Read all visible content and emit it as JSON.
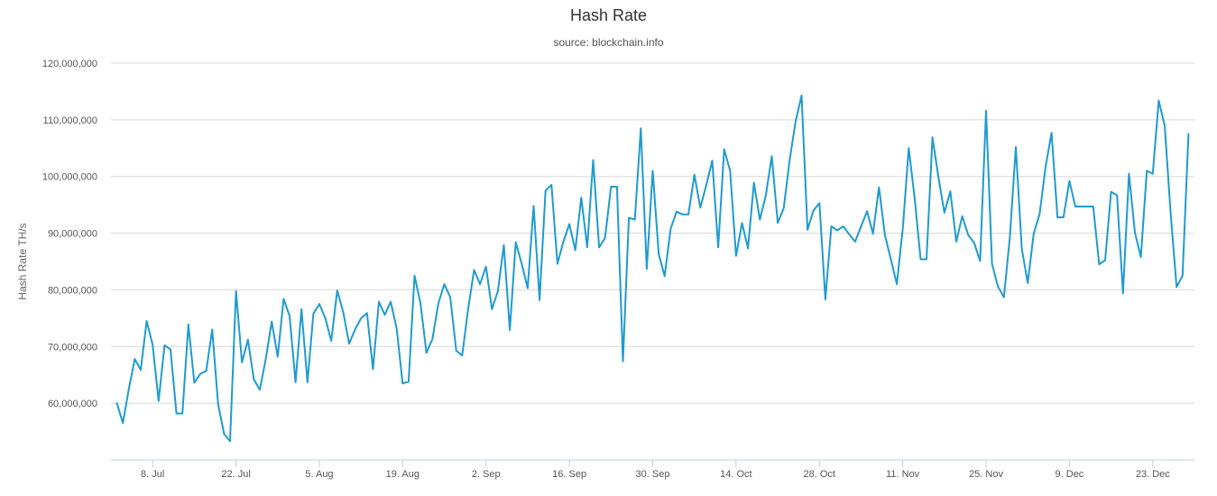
{
  "chart_data": {
    "type": "line",
    "title": "Hash Rate",
    "subtitle": "source: blockchain.info",
    "xlabel": "",
    "ylabel": "Hash Rate TH/s",
    "ylim": [
      50000000,
      120000000
    ],
    "yticks": [
      60000000,
      70000000,
      80000000,
      90000000,
      100000000,
      110000000,
      120000000
    ],
    "ytick_labels": [
      "60,000,000",
      "70,000,000",
      "80,000,000",
      "90,000,000",
      "100,000,000",
      "110,000,000",
      "120,000,000"
    ],
    "xlim": [
      -7,
      175
    ],
    "xticks": [
      0,
      14,
      28,
      42,
      56,
      70,
      84,
      98,
      112,
      126,
      140,
      154,
      168
    ],
    "xtick_labels": [
      "8. Jul",
      "22. Jul",
      "5. Aug",
      "19. Aug",
      "2. Sep",
      "16. Sep",
      "30. Sep",
      "14. Oct",
      "28. Oct",
      "11. Nov",
      "25. Nov",
      "9. Dec",
      "23. Dec"
    ],
    "grid": true,
    "legend": "none",
    "colors": {
      "line": "#1f9bd1",
      "grid": "#d8d8d8",
      "axis": "#c0d0e0"
    },
    "series": [
      {
        "x": [
          -6,
          -5,
          -4,
          -3,
          -2,
          -1,
          0,
          1,
          2,
          3,
          4,
          5,
          6,
          7,
          8,
          9,
          10,
          11,
          12,
          13,
          14,
          15,
          16,
          17,
          18,
          19,
          20,
          21,
          22,
          23,
          24,
          25,
          26,
          27,
          28,
          29,
          30,
          31,
          32,
          33,
          34,
          35,
          36,
          37,
          38,
          39,
          40,
          41,
          42,
          43,
          44,
          45,
          46,
          47,
          48,
          49,
          50,
          51,
          52,
          53,
          54,
          55,
          56,
          57,
          58,
          59,
          60,
          61,
          62,
          63,
          64,
          65,
          66,
          67,
          68,
          69,
          70,
          71,
          72,
          73,
          74,
          75,
          76,
          77,
          78,
          79,
          80,
          81,
          82,
          83,
          84,
          85,
          86,
          87,
          88,
          89,
          90,
          91,
          92,
          93,
          94,
          95,
          96,
          97,
          98,
          99,
          100,
          101,
          102,
          103,
          104,
          105,
          106,
          107,
          108,
          109,
          110,
          111,
          112,
          113,
          114,
          115,
          116,
          117,
          118,
          119,
          120,
          121,
          122,
          123,
          124,
          125,
          126,
          127,
          128,
          129,
          130,
          131,
          132,
          133,
          134,
          135,
          136,
          137,
          138,
          139,
          140,
          141,
          142,
          143,
          144,
          145,
          146,
          147,
          148,
          149,
          150,
          151,
          152,
          153,
          154,
          155,
          156,
          157,
          158,
          159,
          160,
          161,
          162,
          163,
          164,
          165,
          166,
          167,
          168,
          169,
          170,
          171,
          172,
          173,
          174
        ],
        "values": [
          60000000,
          56500000,
          62500000,
          67800000,
          65900000,
          74500000,
          70300000,
          60400000,
          70200000,
          69500000,
          58200000,
          58200000,
          73900000,
          63600000,
          65200000,
          65700000,
          73000000,
          59800000,
          54600000,
          53300000,
          79800000,
          67200000,
          71200000,
          64200000,
          62400000,
          67800000,
          74400000,
          68200000,
          78400000,
          75400000,
          63700000,
          76600000,
          63700000,
          75800000,
          77500000,
          75000000,
          71000000,
          79900000,
          76100000,
          70500000,
          73000000,
          75000000,
          75900000,
          66000000,
          77900000,
          75600000,
          77900000,
          73200000,
          63500000,
          63800000,
          82500000,
          77600000,
          68900000,
          71300000,
          77600000,
          81000000,
          78700000,
          69300000,
          68400000,
          76600000,
          83500000,
          81000000,
          84100000,
          76600000,
          79800000,
          87900000,
          72900000,
          88400000,
          84600000,
          80300000,
          94800000,
          78200000,
          97500000,
          98500000,
          84600000,
          88500000,
          91600000,
          87000000,
          96300000,
          87500000,
          102900000,
          87500000,
          89200000,
          98200000,
          98200000,
          67400000,
          92700000,
          92400000,
          108500000,
          83700000,
          101000000,
          86400000,
          82400000,
          90700000,
          93800000,
          93300000,
          93300000,
          100300000,
          94500000,
          98500000,
          102800000,
          87500000,
          104800000,
          101000000,
          86000000,
          91800000,
          87300000,
          98900000,
          92400000,
          96700000,
          103600000,
          91800000,
          94400000,
          102900000,
          109700000,
          114300000,
          90600000,
          94000000,
          95300000,
          78300000,
          91200000,
          90500000,
          91200000,
          89800000,
          88500000,
          91200000,
          93900000,
          89900000,
          98100000,
          89700000,
          85400000,
          81000000,
          90800000,
          105000000,
          96100000,
          85400000,
          85400000,
          106900000,
          99900000,
          93600000,
          97400000,
          88500000,
          93000000,
          89700000,
          88300000,
          85100000,
          111600000,
          84600000,
          80600000,
          78700000,
          89300000,
          105200000,
          87300000,
          81200000,
          89900000,
          93400000,
          101700000,
          107700000,
          92800000,
          92800000,
          99200000,
          94700000,
          94700000,
          94700000,
          94700000,
          84500000,
          85200000,
          97300000,
          96700000,
          79400000,
          100500000,
          90100000,
          85800000,
          101000000,
          100500000,
          113400000,
          109000000,
          93600000,
          80500000,
          82500000,
          107500000
        ]
      }
    ]
  }
}
